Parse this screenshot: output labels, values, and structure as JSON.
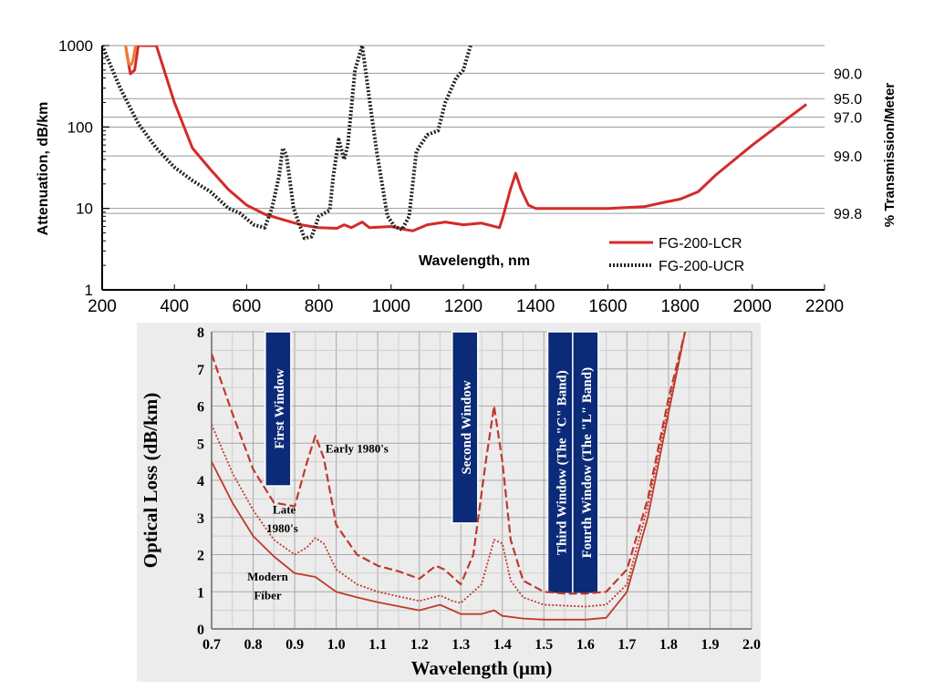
{
  "chart_data": [
    {
      "type": "line",
      "title": "",
      "xlabel": "Wavelength, nm",
      "ylabel": "Attenuation, dB/km",
      "ylabel_right": "% Transmission/Meter",
      "y_scale": "log",
      "xlim": [
        200,
        2200
      ],
      "ylim": [
        1,
        1000
      ],
      "x_ticks": [
        "200",
        "400",
        "600",
        "800",
        "1000",
        "1200",
        "1400",
        "1600",
        "1800",
        "2000",
        "2200"
      ],
      "y_ticks": [
        "1",
        "10",
        "100",
        "1000"
      ],
      "right_ticks": [
        {
          "label": "90.0",
          "at_attenuation": 457
        },
        {
          "label": "95.0",
          "at_attenuation": 223
        },
        {
          "label": "97.0",
          "at_attenuation": 132
        },
        {
          "label": "99.0",
          "at_attenuation": 44
        },
        {
          "label": "99.8",
          "at_attenuation": 8.7
        }
      ],
      "grid": "horizontal",
      "legend_position": "bottom-right",
      "series": [
        {
          "name": "FG-200-LCR",
          "color": "#d42a2a",
          "style": "solid",
          "x": [
            265,
            278,
            290,
            300,
            350,
            400,
            450,
            500,
            550,
            600,
            650,
            700,
            750,
            800,
            850,
            870,
            890,
            920,
            940,
            1000,
            1040,
            1060,
            1100,
            1150,
            1200,
            1250,
            1300,
            1310,
            1330,
            1345,
            1360,
            1380,
            1400,
            1450,
            1500,
            1600,
            1700,
            1760,
            1800,
            1850,
            1900,
            2000,
            2100,
            2150
          ],
          "y": [
            1000,
            450,
            500,
            1000,
            1000,
            200,
            55,
            30,
            17,
            11,
            8.5,
            7.3,
            6.3,
            5.8,
            5.7,
            6.3,
            5.8,
            6.8,
            5.8,
            6.0,
            5.5,
            5.3,
            6.3,
            6.8,
            6.3,
            6.6,
            5.8,
            8,
            17,
            27,
            17,
            11,
            10,
            10,
            10,
            10,
            10.5,
            12,
            13,
            16,
            26,
            60,
            130,
            190
          ]
        },
        {
          "name": "FG-200-UCR",
          "color": "#222222",
          "style": "dotted",
          "x": [
            200,
            250,
            300,
            350,
            400,
            450,
            500,
            550,
            580,
            620,
            650,
            670,
            690,
            700,
            710,
            730,
            760,
            780,
            800,
            830,
            840,
            855,
            870,
            880,
            900,
            920,
            940,
            960,
            990,
            1010,
            1030,
            1050,
            1070,
            1100,
            1130,
            1150,
            1180,
            1200,
            1220
          ],
          "y": [
            1000,
            300,
            110,
            55,
            32,
            22,
            16,
            10,
            8.8,
            6.3,
            5.8,
            10,
            25,
            55,
            45,
            10,
            4.3,
            4.5,
            8,
            9.5,
            25,
            70,
            40,
            60,
            500,
            1000,
            220,
            50,
            8,
            6,
            5.5,
            8,
            50,
            80,
            90,
            200,
            400,
            500,
            1000
          ]
        }
      ]
    },
    {
      "type": "line",
      "title": "",
      "xlabel": "Wavelength (μm)",
      "ylabel": "Optical Loss (dB/km)",
      "xlim": [
        0.7,
        2.0
      ],
      "ylim": [
        0,
        8
      ],
      "x_ticks": [
        "0.7",
        "0.8",
        "0.9",
        "1.0",
        "1.1",
        "1.2",
        "1.3",
        "1.4",
        "1.5",
        "1.6",
        "1.7",
        "1.8",
        "1.9",
        "2.0"
      ],
      "y_ticks": [
        "0",
        "1",
        "2",
        "3",
        "4",
        "5",
        "6",
        "7",
        "8"
      ],
      "grid": "both",
      "color": "#c0392b",
      "series": [
        {
          "name": "Early 1980's",
          "style": "dashed",
          "x": [
            0.7,
            0.75,
            0.8,
            0.85,
            0.9,
            0.93,
            0.95,
            0.97,
            1.0,
            1.05,
            1.1,
            1.15,
            1.2,
            1.24,
            1.26,
            1.3,
            1.33,
            1.36,
            1.38,
            1.4,
            1.42,
            1.45,
            1.5,
            1.55,
            1.6,
            1.65,
            1.7,
            1.75,
            1.8,
            1.84
          ],
          "y": [
            7.4,
            5.8,
            4.3,
            3.4,
            3.3,
            4.5,
            5.2,
            4.6,
            2.8,
            2.0,
            1.7,
            1.55,
            1.35,
            1.7,
            1.6,
            1.2,
            2.0,
            4.5,
            6.0,
            4.5,
            2.4,
            1.3,
            1.0,
            0.95,
            0.95,
            1.0,
            1.6,
            3.5,
            6.2,
            8
          ]
        },
        {
          "name": "Late 1980's",
          "style": "dotted",
          "x": [
            0.7,
            0.75,
            0.8,
            0.85,
            0.9,
            0.93,
            0.95,
            0.97,
            1.0,
            1.05,
            1.1,
            1.2,
            1.25,
            1.28,
            1.3,
            1.35,
            1.38,
            1.4,
            1.42,
            1.45,
            1.5,
            1.6,
            1.65,
            1.7,
            1.75,
            1.8,
            1.84
          ],
          "y": [
            5.5,
            4.2,
            3.2,
            2.4,
            2.0,
            2.2,
            2.45,
            2.3,
            1.6,
            1.2,
            1.0,
            0.75,
            0.9,
            0.75,
            0.7,
            1.2,
            2.4,
            2.3,
            1.3,
            0.85,
            0.65,
            0.6,
            0.65,
            1.2,
            3.3,
            6.0,
            8
          ]
        },
        {
          "name": "Modern Fiber",
          "style": "solid",
          "x": [
            0.7,
            0.75,
            0.8,
            0.85,
            0.9,
            0.95,
            1.0,
            1.05,
            1.1,
            1.2,
            1.25,
            1.3,
            1.35,
            1.38,
            1.4,
            1.45,
            1.5,
            1.6,
            1.65,
            1.7,
            1.75,
            1.8,
            1.84
          ],
          "y": [
            4.5,
            3.4,
            2.5,
            1.95,
            1.5,
            1.4,
            1.0,
            0.85,
            0.72,
            0.5,
            0.65,
            0.4,
            0.4,
            0.5,
            0.35,
            0.28,
            0.25,
            0.25,
            0.3,
            1.0,
            3.0,
            5.8,
            8
          ]
        }
      ],
      "annotations": [
        {
          "text": "Early 1980's",
          "x": 1.05,
          "y": 4.75
        },
        {
          "text": "Late",
          "x": 0.875,
          "y": 3.1
        },
        {
          "text": "1980's",
          "x": 0.87,
          "y": 2.6
        },
        {
          "text": "Modern",
          "x": 0.835,
          "y": 1.3
        },
        {
          "text": "Fiber",
          "x": 0.835,
          "y": 0.8
        }
      ],
      "bands": [
        {
          "label": "First Window",
          "x": 0.86,
          "y_from": 3.85,
          "y_to": 8.0
        },
        {
          "label": "Second Window",
          "x": 1.31,
          "y_from": 2.85,
          "y_to": 8.0
        },
        {
          "label": "Third Window (The \"C\" Band)",
          "x": 1.54,
          "y_from": 0.95,
          "y_to": 8.0
        },
        {
          "label": "Fourth Window (The \"L\" Band)",
          "x": 1.6,
          "y_from": 0.95,
          "y_to": 8.0
        }
      ]
    }
  ]
}
